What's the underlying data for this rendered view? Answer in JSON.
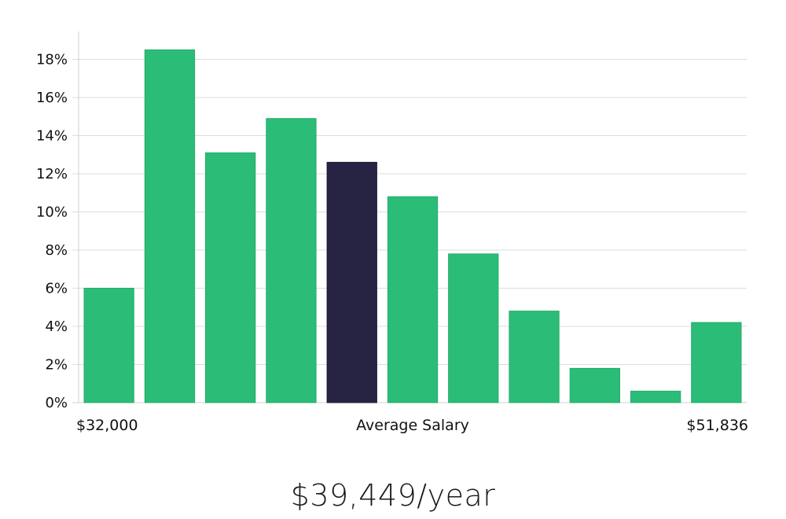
{
  "chart_data": {
    "type": "bar",
    "title": "",
    "xlabel": "Average Salary",
    "ylabel": "",
    "x_start_label": "$32,000",
    "x_end_label": "$51,836",
    "values": [
      6.0,
      18.5,
      13.1,
      14.9,
      12.6,
      10.8,
      7.8,
      4.8,
      1.8,
      0.6,
      4.2
    ],
    "highlight_index": 4,
    "ylim": [
      0,
      19
    ],
    "y_ticks": [
      0,
      2,
      4,
      6,
      8,
      10,
      12,
      14,
      16,
      18
    ],
    "y_tick_format": "{v}%",
    "grid": true,
    "colors": {
      "bar": "#2bbd77",
      "highlight": "#272443",
      "grid": "#dcdde0",
      "axis": "#cfd1d4"
    }
  },
  "summary": {
    "salary_text": "$39,449/year"
  }
}
